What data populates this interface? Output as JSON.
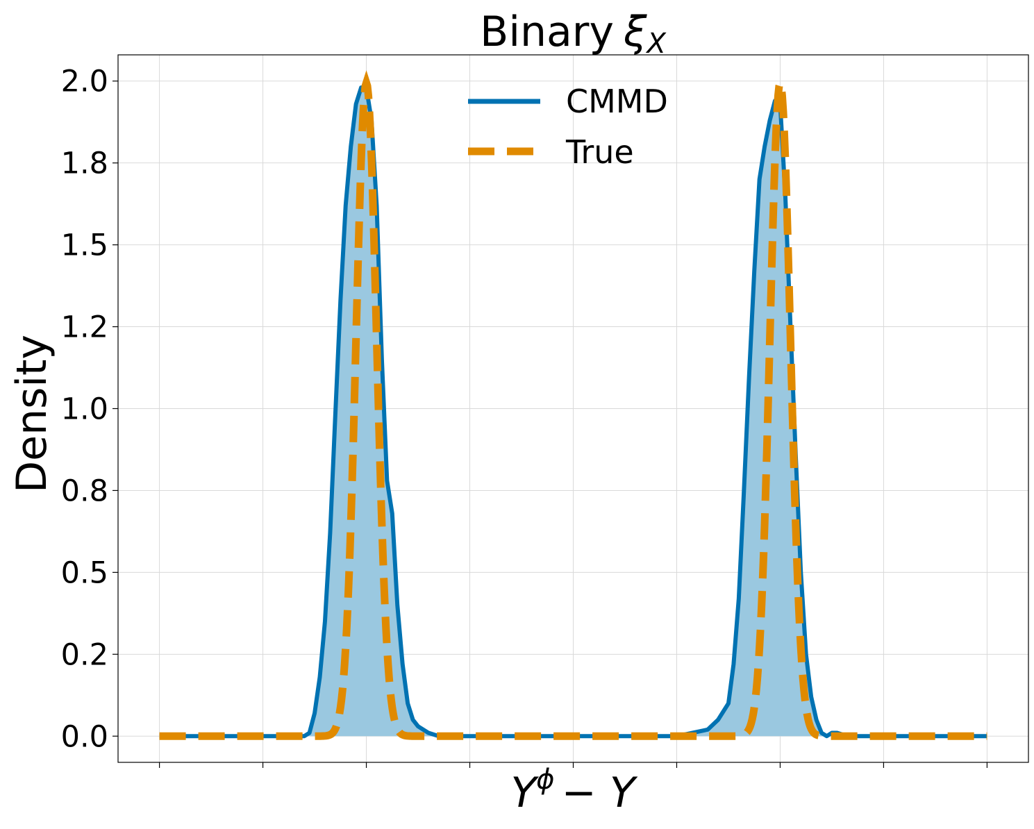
{
  "chart_data": {
    "type": "area",
    "title": "Binary",
    "title_symbol": "ξ",
    "title_subscript": "X",
    "xlabel_base": "Y",
    "xlabel_superscript": "ϕ",
    "xlabel_tail": "− Y",
    "ylabel": "Density",
    "xlim": [
      -4.4,
      4.4
    ],
    "ylim": [
      -0.08,
      2.08
    ],
    "x_ticks": [
      -4,
      -3,
      -2,
      -1,
      0,
      1,
      2,
      3,
      4
    ],
    "y_ticks": [
      0.0,
      0.25,
      0.5,
      0.75,
      1.0,
      1.25,
      1.5,
      1.75,
      2.0
    ],
    "y_tick_labels": [
      "0.0",
      "0.2",
      "0.5",
      "0.8",
      "1.0",
      "1.2",
      "1.5",
      "1.8",
      "2.0"
    ],
    "grid": true,
    "legend_position": "top-center",
    "series": [
      {
        "name": "CMMD",
        "color": "#0072b2",
        "fill_color": "#9ac8e0",
        "style": "solid",
        "x": [
          -4.0,
          -3.0,
          -2.6,
          -2.55,
          -2.5,
          -2.45,
          -2.4,
          -2.35,
          -2.3,
          -2.25,
          -2.2,
          -2.15,
          -2.1,
          -2.05,
          -2.0,
          -1.95,
          -1.9,
          -1.85,
          -1.8,
          -1.75,
          -1.7,
          -1.65,
          -1.6,
          -1.55,
          -1.5,
          -1.4,
          -1.3,
          0.0,
          1.0,
          1.3,
          1.4,
          1.5,
          1.55,
          1.6,
          1.65,
          1.7,
          1.75,
          1.8,
          1.85,
          1.9,
          1.95,
          2.0,
          2.05,
          2.1,
          2.15,
          2.2,
          2.25,
          2.3,
          2.35,
          2.4,
          2.45,
          2.5,
          2.55,
          2.6,
          2.7,
          2.8,
          3.0,
          4.0
        ],
        "y": [
          0.0,
          0.0,
          0.0,
          0.01,
          0.07,
          0.18,
          0.35,
          0.62,
          0.98,
          1.33,
          1.62,
          1.8,
          1.93,
          1.98,
          1.98,
          1.88,
          1.62,
          1.15,
          0.78,
          0.68,
          0.4,
          0.22,
          0.1,
          0.05,
          0.03,
          0.01,
          0.0,
          0.0,
          0.0,
          0.02,
          0.05,
          0.1,
          0.22,
          0.42,
          0.75,
          1.1,
          1.42,
          1.7,
          1.8,
          1.88,
          1.94,
          1.93,
          1.65,
          1.25,
          0.86,
          0.5,
          0.25,
          0.12,
          0.05,
          0.01,
          0.0,
          0.01,
          0.01,
          0.005,
          0.0,
          0.0,
          0.0,
          0.0
        ]
      },
      {
        "name": "True",
        "color": "#e08a00",
        "style": "dashed",
        "mixture": {
          "weights": [
            0.5,
            0.5
          ],
          "means": [
            -2.0,
            2.0
          ],
          "sd": 0.1
        }
      }
    ]
  }
}
